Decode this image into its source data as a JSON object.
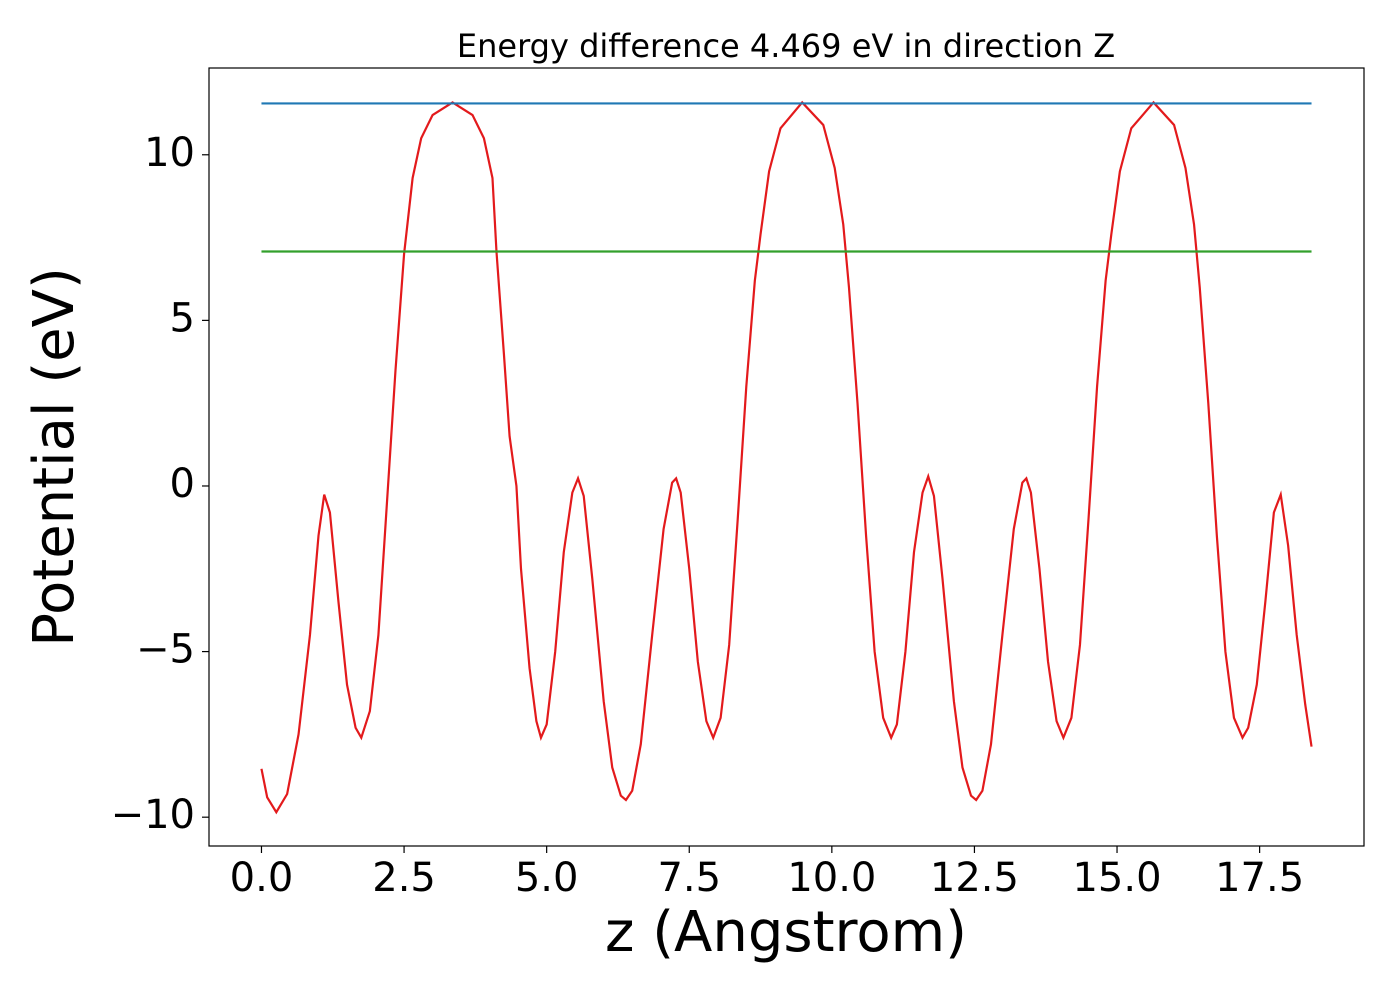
{
  "chart_data": {
    "type": "line",
    "title": "Energy difference 4.469 eV in direction Z",
    "x_label": "z (Angstrom)",
    "y_label": "Potential (eV)",
    "xlim": [
      -0.92,
      19.33
    ],
    "ylim": [
      -10.87,
      12.62
    ],
    "xticks": [
      {
        "value": 0,
        "label": "0.0"
      },
      {
        "value": 2.5,
        "label": "2.5"
      },
      {
        "value": 5,
        "label": "5.0"
      },
      {
        "value": 7.5,
        "label": "7.5"
      },
      {
        "value": 10,
        "label": "10.0"
      },
      {
        "value": 12.5,
        "label": "12.5"
      },
      {
        "value": 15,
        "label": "15.0"
      },
      {
        "value": 17.5,
        "label": "17.5"
      }
    ],
    "yticks": [
      {
        "value": -10,
        "label": "−10"
      },
      {
        "value": -5,
        "label": "−5"
      },
      0,
      5,
      10
    ],
    "grid": false,
    "series": [
      {
        "color": "#e31a1c",
        "x": [
          0,
          0.1,
          0.26,
          0.45,
          0.65,
          0.85,
          1.0,
          1.1,
          1.2,
          1.35,
          1.5,
          1.65,
          1.75,
          1.9,
          2.05,
          2.2,
          2.35,
          2.5,
          2.65,
          2.8,
          3.0,
          3.35,
          3.7,
          3.9,
          4.05,
          4.12,
          4.25,
          4.35,
          4.47,
          4.55,
          4.7,
          4.82,
          4.9,
          5.0,
          5.15,
          5.3,
          5.45,
          5.55,
          5.65,
          5.8,
          6.0,
          6.15,
          6.3,
          6.39,
          6.5,
          6.65,
          6.85,
          7.05,
          7.2,
          7.27,
          7.35,
          7.5,
          7.65,
          7.8,
          7.92,
          8.05,
          8.2,
          8.35,
          8.5,
          8.65,
          8.75,
          8.9,
          9.1,
          9.48,
          9.85,
          10.05,
          10.2,
          10.3,
          10.45,
          10.6,
          10.75,
          10.9,
          11.04,
          11.14,
          11.29,
          11.44,
          11.59,
          11.69,
          11.79,
          11.94,
          12.14,
          12.29,
          12.44,
          12.53,
          12.64,
          12.79,
          12.99,
          13.19,
          13.34,
          13.41,
          13.49,
          13.64,
          13.79,
          13.94,
          14.06,
          14.2,
          14.35,
          14.5,
          14.65,
          14.8,
          14.9,
          15.05,
          15.25,
          15.64,
          16.0,
          16.2,
          16.35,
          16.45,
          16.6,
          16.75,
          16.9,
          17.05,
          17.2,
          17.3,
          17.45,
          17.6,
          17.75,
          17.87,
          18.0,
          18.15,
          18.3,
          18.41
        ],
        "values": [
          -8.54,
          -9.4,
          -9.85,
          -9.3,
          -7.5,
          -4.5,
          -1.5,
          -0.26,
          -0.8,
          -3.5,
          -6.0,
          -7.3,
          -7.6,
          -6.8,
          -4.5,
          -0.5,
          3.5,
          7.0,
          9.3,
          10.5,
          11.2,
          11.58,
          11.2,
          10.5,
          9.3,
          7.08,
          4.0,
          1.5,
          0,
          -2.5,
          -5.5,
          -7.1,
          -7.6,
          -7.2,
          -5.0,
          -2.0,
          -0.2,
          0.23,
          -0.3,
          -2.8,
          -6.5,
          -8.5,
          -9.35,
          -9.48,
          -9.2,
          -7.8,
          -4.5,
          -1.3,
          0.1,
          0.23,
          -0.2,
          -2.5,
          -5.3,
          -7.1,
          -7.6,
          -7.0,
          -4.8,
          -1.0,
          3.0,
          6.2,
          7.6,
          9.5,
          10.8,
          11.58,
          10.9,
          9.6,
          7.9,
          6.0,
          2.5,
          -1.5,
          -5.0,
          -7.0,
          -7.6,
          -7.2,
          -5.0,
          -2.0,
          -0.2,
          0.29,
          -0.3,
          -2.8,
          -6.5,
          -8.5,
          -9.35,
          -9.48,
          -9.2,
          -7.8,
          -4.5,
          -1.3,
          0.1,
          0.23,
          -0.2,
          -2.5,
          -5.3,
          -7.1,
          -7.6,
          -7.0,
          -4.8,
          -1.0,
          3.0,
          6.2,
          7.6,
          9.5,
          10.8,
          11.58,
          10.9,
          9.6,
          7.9,
          6.0,
          2.5,
          -1.5,
          -5.0,
          -7.0,
          -7.6,
          -7.3,
          -6.0,
          -3.5,
          -0.8,
          -0.26,
          -1.8,
          -4.5,
          -6.6,
          -7.87
        ]
      },
      {
        "color": "#1f78b4",
        "x": [
          0,
          18.41
        ],
        "values": [
          11.55,
          11.55
        ]
      },
      {
        "color": "#33a02c",
        "x": [
          0,
          18.41
        ],
        "values": [
          7.08,
          7.08
        ]
      }
    ]
  }
}
